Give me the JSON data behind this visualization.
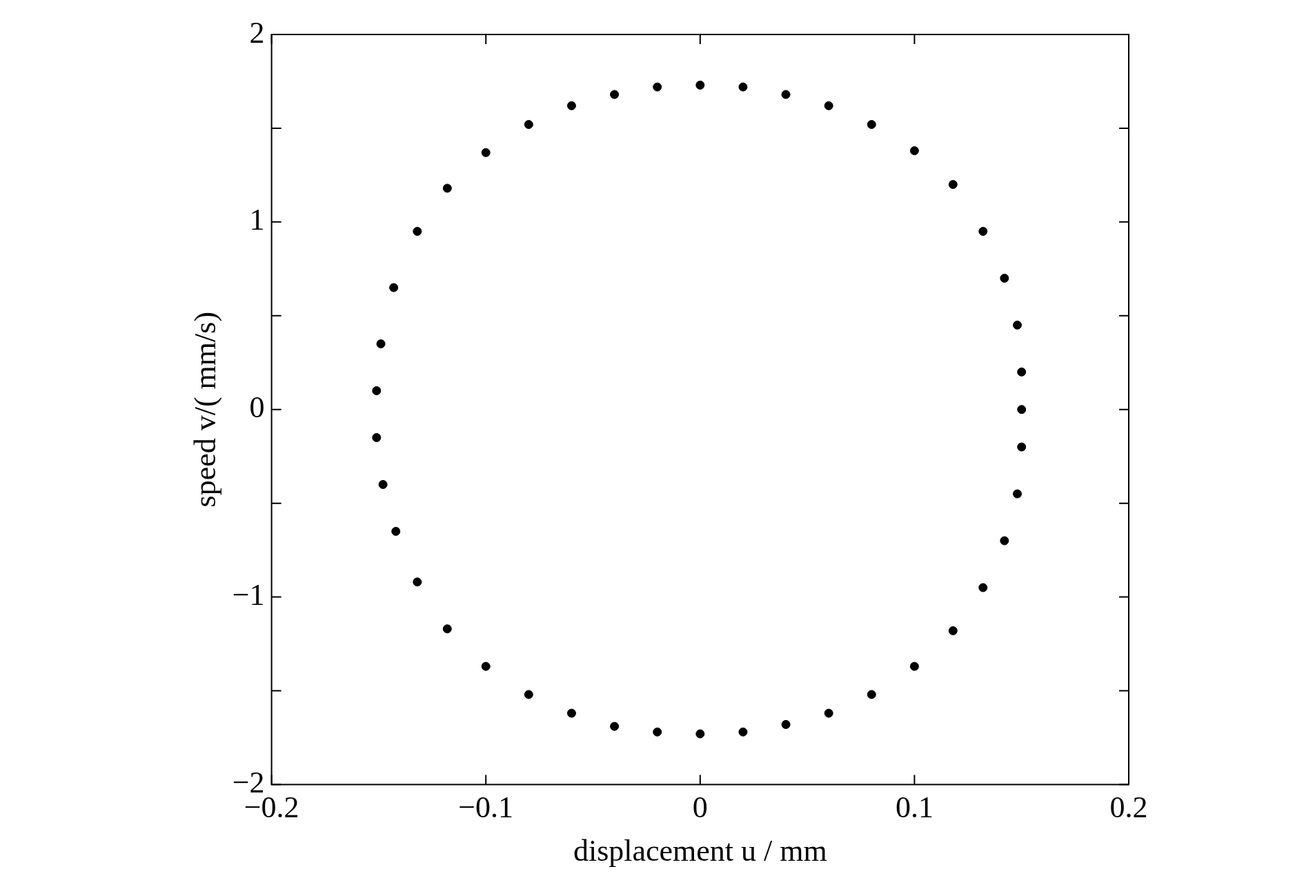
{
  "chart_data": {
    "type": "scatter",
    "xlabel": "displacement u / mm",
    "ylabel": "speed v/( mm/s)",
    "series": [
      {
        "color": "#000000",
        "x": [
          0.15,
          0.15,
          0.148,
          0.142,
          0.132,
          0.118,
          0.1,
          0.08,
          0.06,
          0.04,
          0.02,
          0,
          -0.02,
          -0.04,
          -0.06,
          -0.08,
          -0.1,
          -0.118,
          -0.132,
          -0.143,
          -0.149,
          -0.151,
          -0.151,
          -0.148,
          -0.142,
          -0.132,
          -0.118,
          -0.1,
          -0.08,
          -0.06,
          -0.04,
          -0.02,
          0,
          0.02,
          0.04,
          0.06,
          0.08,
          0.1,
          0.118,
          0.132,
          0.142,
          0.148,
          0.15
        ],
        "values": [
          0,
          0.2,
          0.45,
          0.7,
          0.95,
          1.2,
          1.38,
          1.52,
          1.62,
          1.68,
          1.72,
          1.73,
          1.72,
          1.68,
          1.62,
          1.52,
          1.37,
          1.18,
          0.95,
          0.65,
          0.35,
          0.1,
          -0.15,
          -0.4,
          -0.65,
          -0.92,
          -1.17,
          -1.37,
          -1.52,
          -1.62,
          -1.69,
          -1.72,
          -1.73,
          -1.72,
          -1.68,
          -1.62,
          -1.52,
          -1.37,
          -1.18,
          -0.95,
          -0.7,
          -0.45,
          -0.2
        ]
      }
    ],
    "xlim": [
      -0.2,
      0.2
    ],
    "xticks": [
      {
        "value": -0.2,
        "label": "−0.2"
      },
      {
        "value": -0.1,
        "label": "−0.1"
      },
      0,
      0.1,
      0.2
    ],
    "ylim": [
      -2,
      2
    ],
    "yticks": [
      {
        "value": -2,
        "label": "−2"
      },
      {
        "value": -1.5,
        "label": null
      },
      {
        "value": -1,
        "label": "−1"
      },
      {
        "value": -0.5,
        "label": null
      },
      0,
      {
        "value": 0.5,
        "label": null
      },
      1,
      {
        "value": 1.5,
        "label": null
      },
      2
    ],
    "grid": false,
    "legend": false,
    "marker": "circle"
  }
}
